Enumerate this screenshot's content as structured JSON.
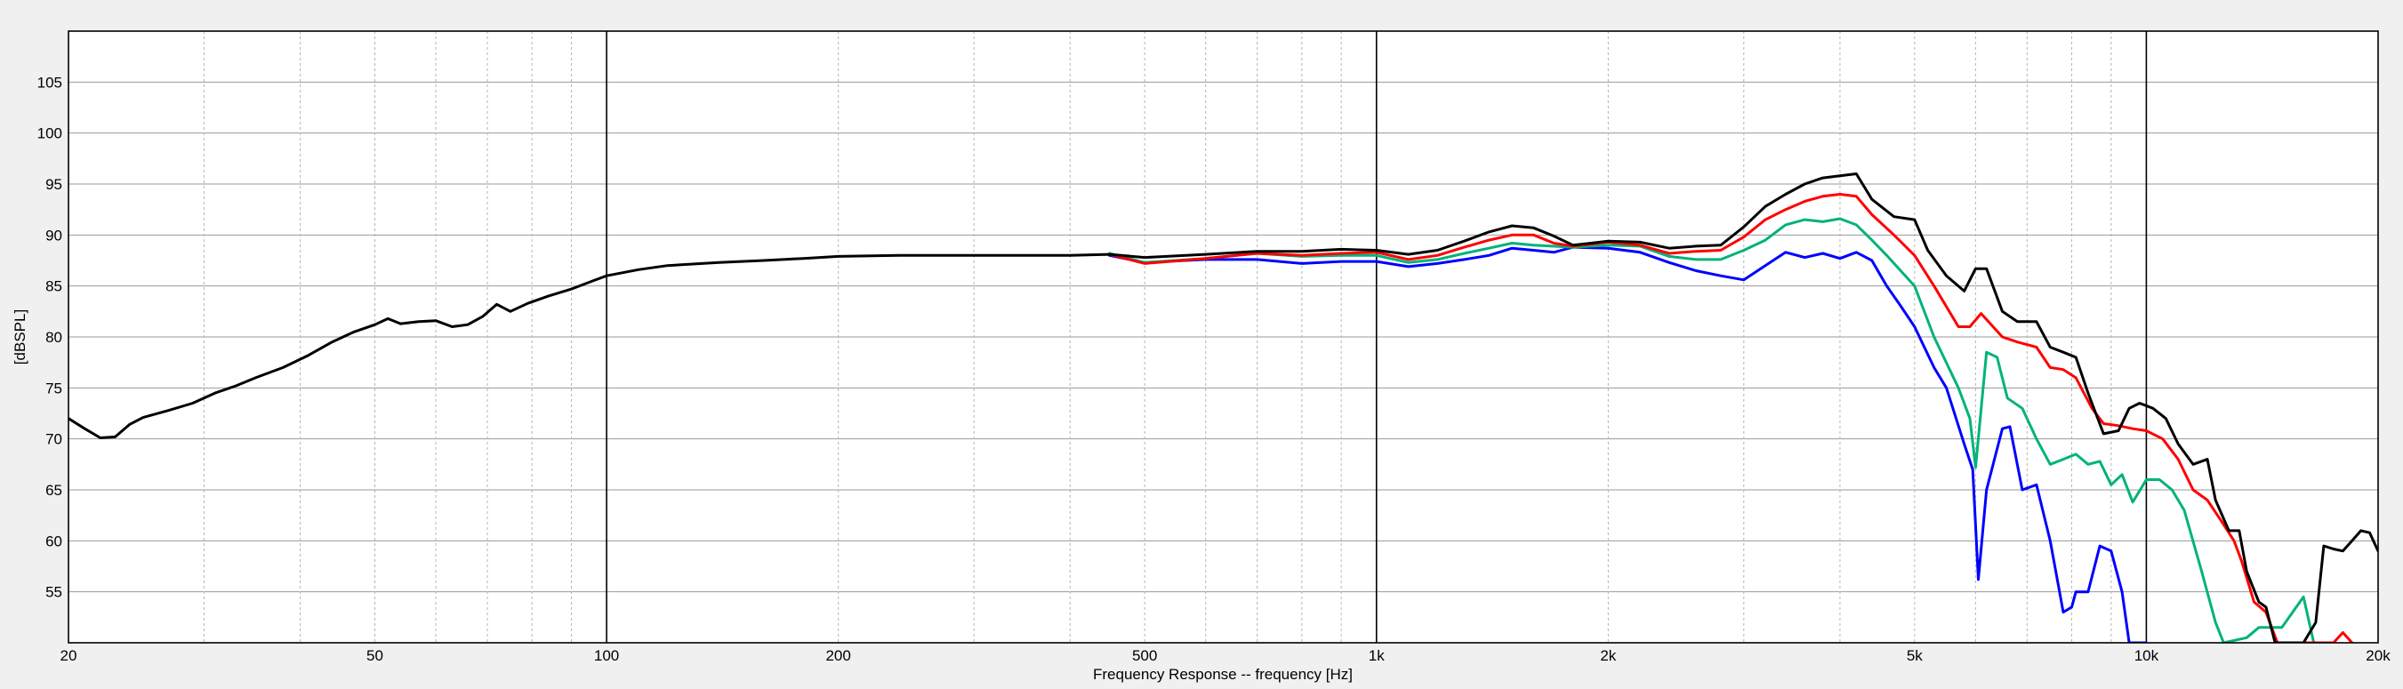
{
  "chart_data": {
    "type": "line",
    "title": "",
    "xlabel": "Frequency Response -- frequency [Hz]",
    "ylabel": "[dBSPL]",
    "x_scale": "log",
    "xlim": [
      20,
      20000
    ],
    "ylim": [
      50,
      110
    ],
    "grid": true,
    "legend": "none",
    "x_ticks": [
      {
        "value": 20,
        "label": "20"
      },
      {
        "value": 50,
        "label": "50"
      },
      {
        "value": 100,
        "label": "100"
      },
      {
        "value": 200,
        "label": "200"
      },
      {
        "value": 500,
        "label": "500"
      },
      {
        "value": 1000,
        "label": "1k"
      },
      {
        "value": 2000,
        "label": "2k"
      },
      {
        "value": 5000,
        "label": "5k"
      },
      {
        "value": 10000,
        "label": "10k"
      },
      {
        "value": 20000,
        "label": "20k"
      }
    ],
    "y_ticks": [
      {
        "value": 55,
        "label": "55"
      },
      {
        "value": 60,
        "label": "60"
      },
      {
        "value": 65,
        "label": "65"
      },
      {
        "value": 70,
        "label": "70"
      },
      {
        "value": 75,
        "label": "75"
      },
      {
        "value": 80,
        "label": "80"
      },
      {
        "value": 85,
        "label": "85"
      },
      {
        "value": 90,
        "label": "90"
      },
      {
        "value": 95,
        "label": "95"
      },
      {
        "value": 100,
        "label": "100"
      },
      {
        "value": 105,
        "label": "105"
      }
    ],
    "series": [
      {
        "color": "#0000ff",
        "points": [
          [
            450,
            88
          ],
          [
            500,
            87.3
          ],
          [
            600,
            87.6
          ],
          [
            700,
            87.6
          ],
          [
            800,
            87.2
          ],
          [
            900,
            87.4
          ],
          [
            1000,
            87.4
          ],
          [
            1100,
            86.9
          ],
          [
            1200,
            87.2
          ],
          [
            1300,
            87.6
          ],
          [
            1400,
            88.0
          ],
          [
            1500,
            88.7
          ],
          [
            1600,
            88.5
          ],
          [
            1700,
            88.3
          ],
          [
            1800,
            88.8
          ],
          [
            2000,
            88.7
          ],
          [
            2200,
            88.3
          ],
          [
            2400,
            87.3
          ],
          [
            2600,
            86.5
          ],
          [
            2800,
            86.0
          ],
          [
            3000,
            85.6
          ],
          [
            3200,
            87.0
          ],
          [
            3400,
            88.3
          ],
          [
            3600,
            87.8
          ],
          [
            3800,
            88.2
          ],
          [
            4000,
            87.7
          ],
          [
            4200,
            88.3
          ],
          [
            4400,
            87.5
          ],
          [
            4600,
            85.0
          ],
          [
            4800,
            83.0
          ],
          [
            5000,
            81.0
          ],
          [
            5300,
            77.0
          ],
          [
            5500,
            75.0
          ],
          [
            5800,
            69.5
          ],
          [
            5950,
            67.0
          ],
          [
            6050,
            56.2
          ],
          [
            6200,
            65.0
          ],
          [
            6500,
            71.0
          ],
          [
            6650,
            71.2
          ],
          [
            6900,
            65.0
          ],
          [
            7200,
            65.5
          ],
          [
            7500,
            60.0
          ],
          [
            7800,
            53.0
          ],
          [
            8000,
            53.5
          ],
          [
            8100,
            55.0
          ],
          [
            8400,
            55.0
          ],
          [
            8700,
            59.5
          ],
          [
            9000,
            59.0
          ],
          [
            9300,
            55.0
          ],
          [
            9500,
            50.0
          ],
          [
            10000,
            50.0
          ]
        ]
      },
      {
        "color": "#00b37a",
        "points": [
          [
            450,
            88.2
          ],
          [
            500,
            87.3
          ],
          [
            600,
            87.7
          ],
          [
            700,
            88.2
          ],
          [
            800,
            87.9
          ],
          [
            900,
            88.0
          ],
          [
            1000,
            88.0
          ],
          [
            1100,
            87.3
          ],
          [
            1200,
            87.6
          ],
          [
            1300,
            88.2
          ],
          [
            1400,
            88.7
          ],
          [
            1500,
            89.2
          ],
          [
            1600,
            89.0
          ],
          [
            1800,
            88.8
          ],
          [
            2000,
            89.0
          ],
          [
            2200,
            88.9
          ],
          [
            2400,
            87.9
          ],
          [
            2600,
            87.6
          ],
          [
            2800,
            87.6
          ],
          [
            3000,
            88.5
          ],
          [
            3200,
            89.5
          ],
          [
            3400,
            91.0
          ],
          [
            3600,
            91.5
          ],
          [
            3800,
            91.3
          ],
          [
            4000,
            91.6
          ],
          [
            4200,
            91.0
          ],
          [
            4400,
            89.5
          ],
          [
            4600,
            88.0
          ],
          [
            5000,
            85.0
          ],
          [
            5300,
            80.0
          ],
          [
            5700,
            75.0
          ],
          [
            5900,
            72.0
          ],
          [
            6000,
            67.2
          ],
          [
            6200,
            78.5
          ],
          [
            6400,
            78.0
          ],
          [
            6600,
            74.0
          ],
          [
            6900,
            73.0
          ],
          [
            7200,
            70.0
          ],
          [
            7500,
            67.5
          ],
          [
            7800,
            68.0
          ],
          [
            8100,
            68.5
          ],
          [
            8400,
            67.5
          ],
          [
            8700,
            67.8
          ],
          [
            9000,
            65.5
          ],
          [
            9300,
            66.5
          ],
          [
            9600,
            63.8
          ],
          [
            10000,
            66.0
          ],
          [
            10400,
            66.0
          ],
          [
            10800,
            65.0
          ],
          [
            11200,
            63.0
          ],
          [
            11800,
            57.0
          ],
          [
            12300,
            52.0
          ],
          [
            12600,
            50.0
          ],
          [
            13500,
            50.5
          ],
          [
            14000,
            51.5
          ],
          [
            15000,
            51.5
          ],
          [
            16000,
            54.5
          ],
          [
            16500,
            50.0
          ]
        ]
      },
      {
        "color": "#ff0000",
        "points": [
          [
            450,
            88.1
          ],
          [
            500,
            87.2
          ],
          [
            600,
            87.7
          ],
          [
            700,
            88.2
          ],
          [
            800,
            88.0
          ],
          [
            900,
            88.2
          ],
          [
            1000,
            88.3
          ],
          [
            1100,
            87.6
          ],
          [
            1200,
            88.0
          ],
          [
            1300,
            88.8
          ],
          [
            1400,
            89.5
          ],
          [
            1500,
            90.0
          ],
          [
            1600,
            90.0
          ],
          [
            1700,
            89.2
          ],
          [
            1800,
            88.9
          ],
          [
            2000,
            89.3
          ],
          [
            2200,
            89.0
          ],
          [
            2400,
            88.2
          ],
          [
            2600,
            88.4
          ],
          [
            2800,
            88.5
          ],
          [
            3000,
            89.8
          ],
          [
            3200,
            91.5
          ],
          [
            3400,
            92.5
          ],
          [
            3600,
            93.3
          ],
          [
            3800,
            93.8
          ],
          [
            4000,
            94.0
          ],
          [
            4200,
            93.8
          ],
          [
            4400,
            92.0
          ],
          [
            4700,
            90.0
          ],
          [
            5000,
            88.0
          ],
          [
            5300,
            85.0
          ],
          [
            5700,
            81.0
          ],
          [
            5900,
            81.0
          ],
          [
            6100,
            82.3
          ],
          [
            6500,
            80.0
          ],
          [
            6800,
            79.5
          ],
          [
            7200,
            79.0
          ],
          [
            7500,
            77.0
          ],
          [
            7800,
            76.8
          ],
          [
            8100,
            76.0
          ],
          [
            8500,
            73.0
          ],
          [
            8800,
            71.5
          ],
          [
            9200,
            71.3
          ],
          [
            9600,
            71.0
          ],
          [
            10000,
            70.8
          ],
          [
            10500,
            70.0
          ],
          [
            11000,
            68.0
          ],
          [
            11500,
            65.0
          ],
          [
            12000,
            64.0
          ],
          [
            12500,
            62.0
          ],
          [
            13000,
            60.0
          ],
          [
            13300,
            58.0
          ],
          [
            13800,
            54.0
          ],
          [
            14300,
            53.0
          ],
          [
            14800,
            50.0
          ],
          [
            17500,
            50.0
          ],
          [
            18000,
            51.0
          ],
          [
            18500,
            50.0
          ]
        ]
      },
      {
        "color": "#000000",
        "points": [
          [
            20,
            72.0
          ],
          [
            21,
            71.0
          ],
          [
            22,
            70.1
          ],
          [
            23,
            70.2
          ],
          [
            24,
            71.4
          ],
          [
            25,
            72.1
          ],
          [
            27,
            72.8
          ],
          [
            29,
            73.5
          ],
          [
            31,
            74.5
          ],
          [
            33,
            75.2
          ],
          [
            35,
            76.0
          ],
          [
            38,
            77.0
          ],
          [
            41,
            78.2
          ],
          [
            44,
            79.5
          ],
          [
            47,
            80.5
          ],
          [
            50,
            81.2
          ],
          [
            52,
            81.8
          ],
          [
            54,
            81.3
          ],
          [
            57,
            81.5
          ],
          [
            60,
            81.6
          ],
          [
            63,
            81.0
          ],
          [
            66,
            81.2
          ],
          [
            69,
            82.0
          ],
          [
            72,
            83.2
          ],
          [
            75,
            82.5
          ],
          [
            79,
            83.3
          ],
          [
            84,
            84.0
          ],
          [
            90,
            84.7
          ],
          [
            96,
            85.5
          ],
          [
            100,
            86.0
          ],
          [
            110,
            86.6
          ],
          [
            120,
            87.0
          ],
          [
            140,
            87.3
          ],
          [
            160,
            87.5
          ],
          [
            180,
            87.7
          ],
          [
            200,
            87.9
          ],
          [
            240,
            88.0
          ],
          [
            280,
            88.0
          ],
          [
            320,
            88.0
          ],
          [
            360,
            88.0
          ],
          [
            400,
            88.0
          ],
          [
            450,
            88.1
          ],
          [
            500,
            87.8
          ],
          [
            600,
            88.1
          ],
          [
            700,
            88.4
          ],
          [
            800,
            88.4
          ],
          [
            900,
            88.6
          ],
          [
            1000,
            88.5
          ],
          [
            1100,
            88.1
          ],
          [
            1200,
            88.5
          ],
          [
            1300,
            89.4
          ],
          [
            1400,
            90.3
          ],
          [
            1500,
            90.9
          ],
          [
            1600,
            90.7
          ],
          [
            1700,
            89.9
          ],
          [
            1800,
            89.0
          ],
          [
            2000,
            89.4
          ],
          [
            2200,
            89.3
          ],
          [
            2400,
            88.7
          ],
          [
            2600,
            88.9
          ],
          [
            2800,
            89.0
          ],
          [
            3000,
            90.8
          ],
          [
            3200,
            92.8
          ],
          [
            3400,
            94.0
          ],
          [
            3600,
            95.0
          ],
          [
            3800,
            95.6
          ],
          [
            4000,
            95.8
          ],
          [
            4200,
            96.0
          ],
          [
            4400,
            93.5
          ],
          [
            4700,
            91.8
          ],
          [
            5000,
            91.5
          ],
          [
            5200,
            88.5
          ],
          [
            5500,
            86.0
          ],
          [
            5800,
            84.5
          ],
          [
            6000,
            86.7
          ],
          [
            6200,
            86.7
          ],
          [
            6500,
            82.5
          ],
          [
            6800,
            81.5
          ],
          [
            7200,
            81.5
          ],
          [
            7500,
            79.0
          ],
          [
            7800,
            78.5
          ],
          [
            8100,
            78.0
          ],
          [
            8400,
            74.5
          ],
          [
            8800,
            70.5
          ],
          [
            9200,
            70.8
          ],
          [
            9500,
            73.0
          ],
          [
            9800,
            73.5
          ],
          [
            10200,
            73.0
          ],
          [
            10600,
            72.0
          ],
          [
            11000,
            69.5
          ],
          [
            11500,
            67.5
          ],
          [
            12000,
            68.0
          ],
          [
            12300,
            64.0
          ],
          [
            12800,
            61.0
          ],
          [
            13200,
            61.0
          ],
          [
            13500,
            57.0
          ],
          [
            14000,
            54.0
          ],
          [
            14300,
            53.5
          ],
          [
            14700,
            50.0
          ],
          [
            16000,
            50.0
          ],
          [
            16600,
            52.0
          ],
          [
            17000,
            59.5
          ],
          [
            17500,
            59.2
          ],
          [
            18000,
            59.0
          ],
          [
            18500,
            60.0
          ],
          [
            19000,
            61.0
          ],
          [
            19500,
            60.8
          ],
          [
            20000,
            59.0
          ]
        ]
      }
    ]
  }
}
